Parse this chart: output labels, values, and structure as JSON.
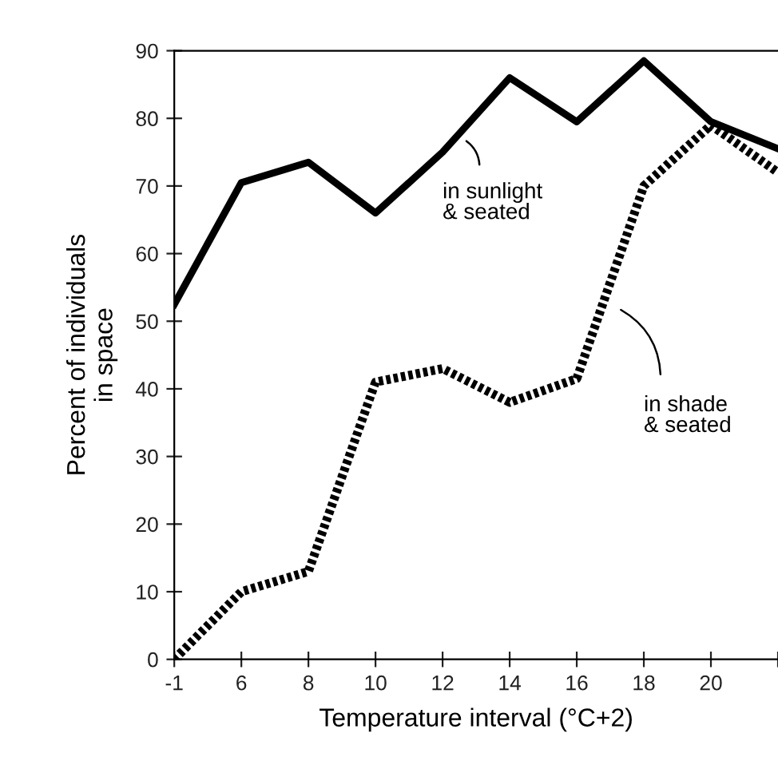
{
  "chart_data": {
    "type": "line",
    "xlabel": "Temperature interval (°C+2)",
    "ylabel": "Percent of individuals\nin space",
    "categories": [
      "-1",
      "6",
      "8",
      "10",
      "12",
      "14",
      "16",
      "18",
      "20",
      null
    ],
    "series": [
      {
        "color": "#000000",
        "line_style": "solid",
        "values": [
          52.5,
          70.5,
          73.5,
          66,
          75,
          86,
          79.5,
          88.5,
          79.5,
          75.5
        ]
      },
      {
        "color": "#000000",
        "line_style": "dotted",
        "values": [
          0,
          10,
          13,
          41,
          43,
          38,
          41.5,
          70,
          79,
          72
        ]
      }
    ],
    "annotations": [
      "in sunlight\n& seated",
      "in shade\n& seated"
    ],
    "ylim": [
      0,
      90
    ],
    "yticks": [
      0,
      10,
      20,
      30,
      40,
      50,
      60,
      70,
      80,
      90
    ],
    "grid": false,
    "legend": false,
    "marker": "none"
  }
}
